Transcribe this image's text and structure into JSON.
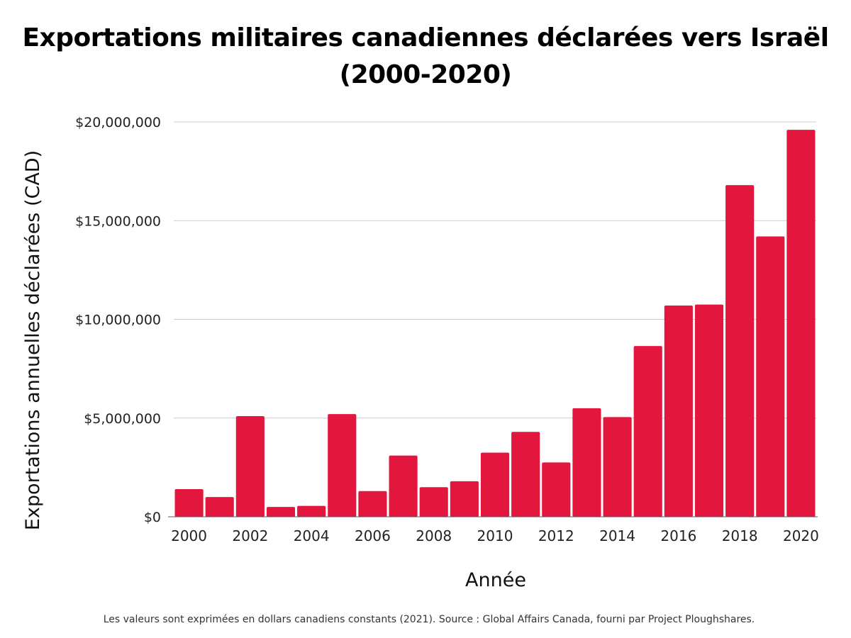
{
  "title_lines": [
    "Exportations militaires canadiennes déclarées vers Israël",
    "(2000-2020)"
  ],
  "footnote": "Les valeurs sont exprimées en dollars canadiens constants (2021). Source : Global Affairs Canada, fourni par Project Ploughshares.",
  "colors": {
    "bar": "#e3173e",
    "grid": "#cccccc",
    "axis": "#555555"
  },
  "chart_data": {
    "type": "bar",
    "title": "Exportations militaires canadiennes déclarées vers Israël (2000-2020)",
    "xlabel": "Année",
    "ylabel": "Exportations annuelles déclarées (CAD)",
    "categories": [
      "2000",
      "2001",
      "2002",
      "2003",
      "2004",
      "2005",
      "2006",
      "2007",
      "2008",
      "2009",
      "2010",
      "2011",
      "2012",
      "2013",
      "2014",
      "2015",
      "2016",
      "2017",
      "2018",
      "2019",
      "2020"
    ],
    "values": [
      1400000,
      1000000,
      5100000,
      500000,
      550000,
      5200000,
      1300000,
      3100000,
      1500000,
      1800000,
      3250000,
      4300000,
      2750000,
      5500000,
      5050000,
      8650000,
      10700000,
      10750000,
      16800000,
      14200000,
      19600000
    ],
    "x_tick_labels": [
      "2000",
      "2002",
      "2004",
      "2006",
      "2008",
      "2010",
      "2012",
      "2014",
      "2016",
      "2018",
      "2020"
    ],
    "y_tick_labels": [
      "$0",
      "$5,000,000",
      "$10,000,000",
      "$15,000,000",
      "$20,000,000"
    ],
    "y_ticks": [
      0,
      5000000,
      10000000,
      15000000,
      20000000
    ],
    "ylim": [
      0,
      20000000
    ],
    "grid": true,
    "legend": "none"
  }
}
